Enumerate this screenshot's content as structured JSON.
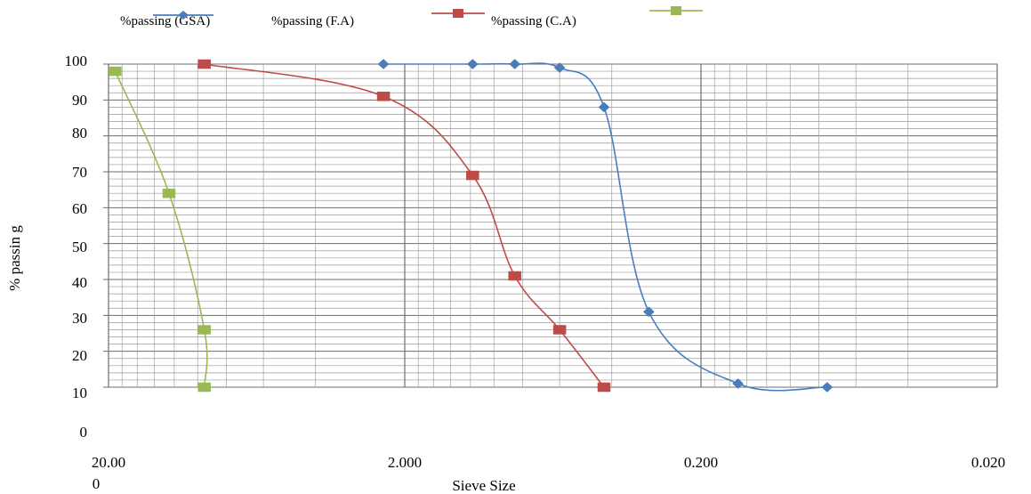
{
  "chart_data": {
    "type": "line",
    "title": "",
    "xlabel": "Sieve Size",
    "ylabel": "% passin g",
    "x_scale": "log-reversed",
    "xlim": [
      20.0,
      0.02
    ],
    "ylim": [
      0,
      100
    ],
    "x_tick_labels": [
      "20.00 0",
      "2.000",
      "0.200",
      "0.020"
    ],
    "y_tick_labels": [
      "100",
      "90",
      "80",
      "70",
      "60",
      "50",
      "40",
      "30",
      "20",
      "10",
      "0"
    ],
    "grid": true,
    "legend_position": "top",
    "legend_labels": [
      "%passing (GSA)",
      "%passing (F.A)",
      "%passing (C.A)"
    ],
    "series": [
      {
        "name": "%passing (GSA)",
        "color": "#4a7ebb",
        "marker": "diamond",
        "points": [
          [
            2.36,
            100
          ],
          [
            1.18,
            100
          ],
          [
            0.85,
            100
          ],
          [
            0.6,
            99
          ],
          [
            0.425,
            88
          ],
          [
            0.3,
            31
          ],
          [
            0.15,
            11
          ],
          [
            0.075,
            10
          ]
        ]
      },
      {
        "name": "%passing (F.A)",
        "color": "#be4b48",
        "marker": "square",
        "points": [
          [
            9.5,
            100
          ],
          [
            2.36,
            91
          ],
          [
            1.18,
            69
          ],
          [
            0.85,
            41
          ],
          [
            0.6,
            26
          ],
          [
            0.425,
            10
          ]
        ]
      },
      {
        "name": "%passing (C.A)",
        "color": "#98b954",
        "marker": "square",
        "points": [
          [
            19.0,
            98
          ],
          [
            12.5,
            64
          ],
          [
            9.5,
            26
          ],
          [
            9.5,
            10
          ]
        ]
      }
    ]
  }
}
